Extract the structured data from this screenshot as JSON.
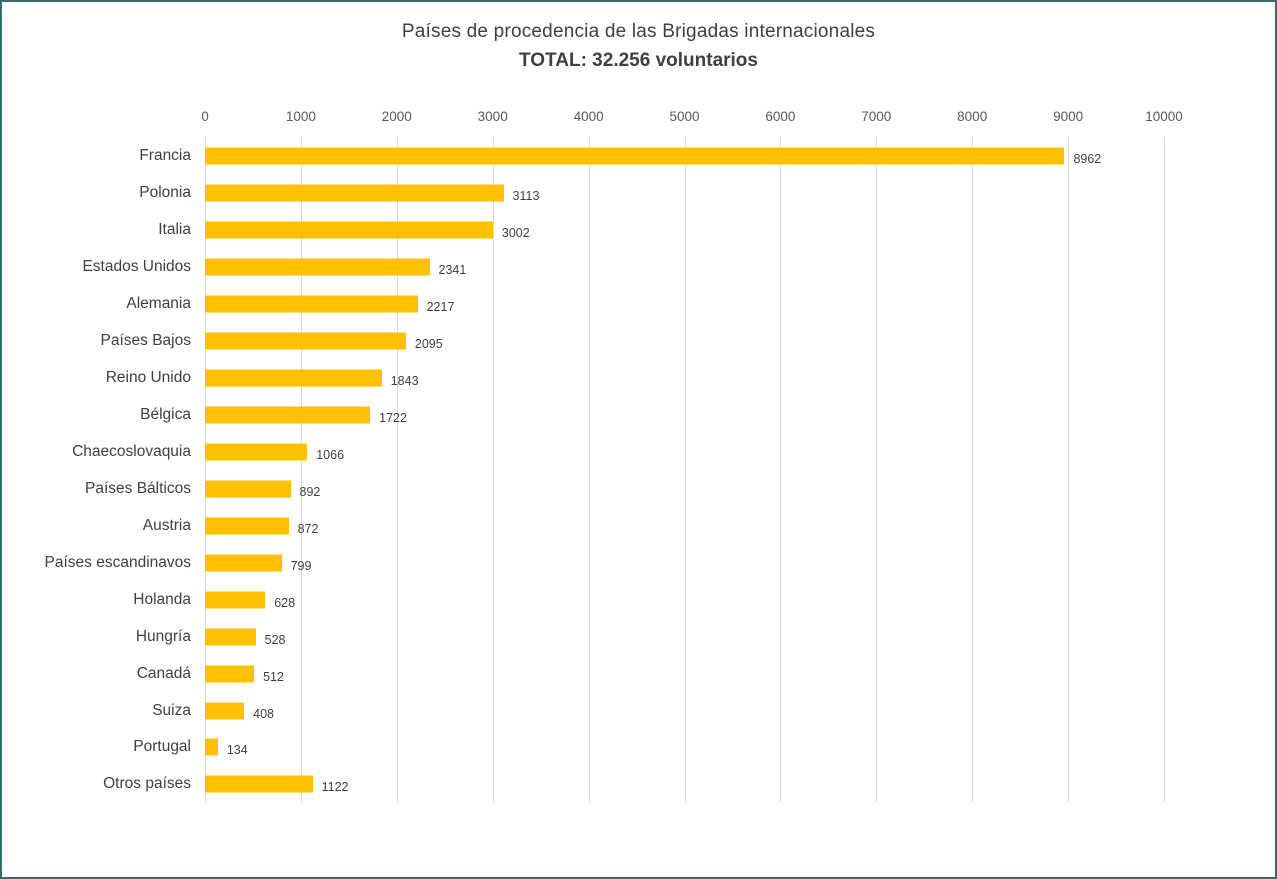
{
  "chart_data": {
    "type": "bar",
    "orientation": "horizontal",
    "title": "Países de procedencia de las Brigadas internacionales",
    "subtitle": "TOTAL: 32.256 voluntarios",
    "categories": [
      "Francia",
      "Polonia",
      "Italia",
      "Estados Unidos",
      "Alemania",
      "Países Bajos",
      "Reino Unido",
      "Bélgica",
      "Chaecoslovaquia",
      "Países Bálticos",
      "Austria",
      "Países escandinavos",
      "Holanda",
      "Hungría",
      "Canadá",
      "Suiza",
      "Portugal",
      "Otros países"
    ],
    "values": [
      8962,
      3113,
      3002,
      2341,
      2217,
      2095,
      1843,
      1722,
      1066,
      892,
      872,
      799,
      628,
      528,
      512,
      408,
      134,
      1122
    ],
    "xlabel": "",
    "ylabel": "",
    "xlim": [
      0,
      10000
    ],
    "x_ticks": [
      0,
      1000,
      2000,
      3000,
      4000,
      5000,
      6000,
      7000,
      8000,
      9000,
      10000
    ],
    "grid": true,
    "legend": false,
    "value_labels": true
  },
  "colors": {
    "bar": "#FFC000",
    "frame": "#376B6E",
    "grid": "#D9D9D9",
    "title_text": "#404040",
    "tick_text": "#595959"
  }
}
